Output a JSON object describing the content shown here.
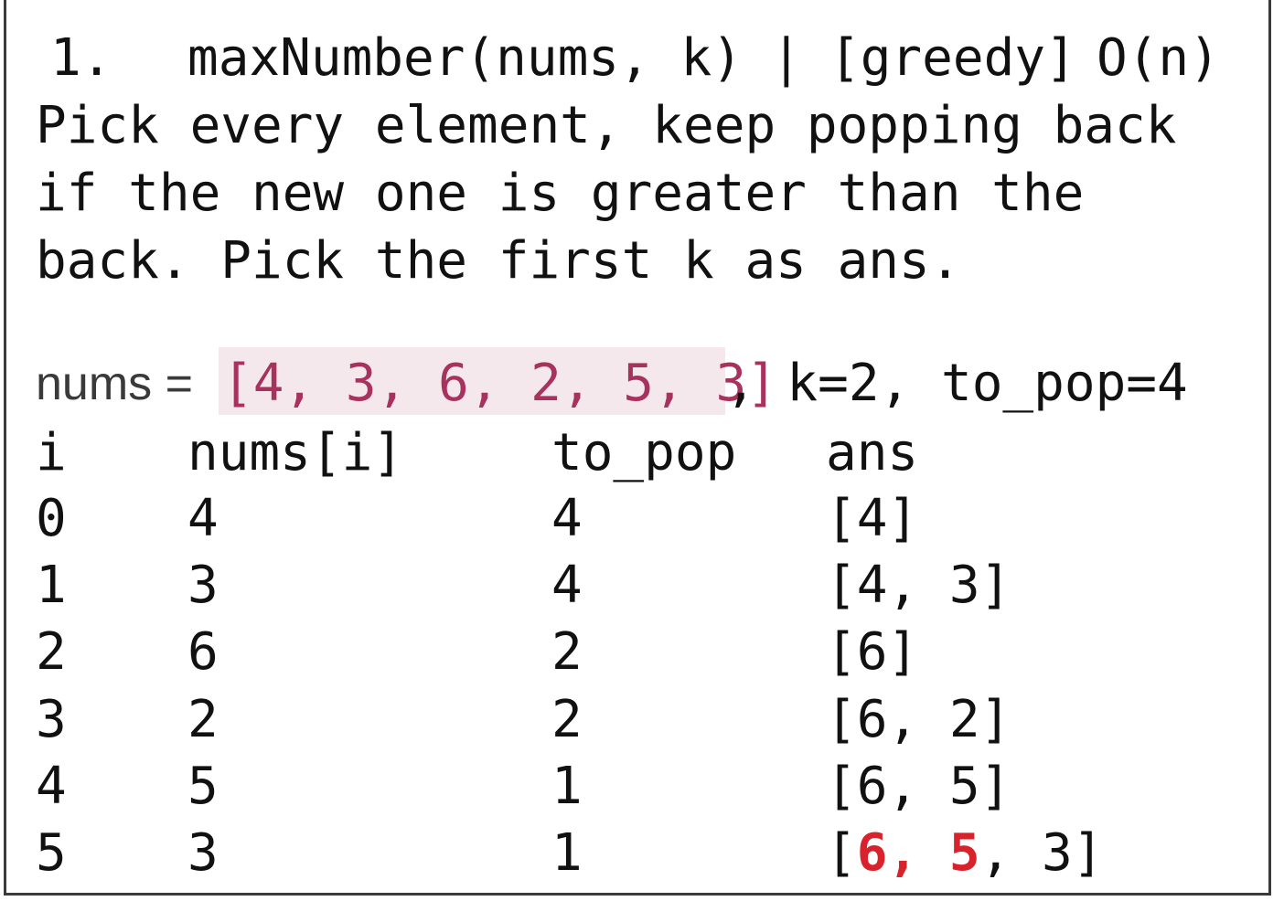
{
  "heading": {
    "number": "1.",
    "signature": "maxNumber(nums, k)",
    "separator": "|",
    "tag": "[greedy]",
    "complexity": "O(n)"
  },
  "description": [
    "Pick every element, keep popping back",
    "if the new one is greater than the",
    "back. Pick the first k as ans."
  ],
  "example": {
    "nums_label": "nums =",
    "nums_value": "[4, 3, 6, 2, 5, 3]",
    "rest": ", k=2, to_pop=4"
  },
  "table": {
    "headers": [
      "i",
      "nums[i]",
      "to_pop",
      "ans"
    ],
    "rows": [
      [
        "0",
        "4",
        "4",
        "[4]"
      ],
      [
        "1",
        "3",
        "4",
        "[4, 3]"
      ],
      [
        "2",
        "6",
        "2",
        "[6]"
      ],
      [
        "3",
        "2",
        "2",
        "[6, 2]"
      ],
      [
        "4",
        "5",
        "1",
        "[6, 5]"
      ],
      [
        "5",
        "3",
        "1",
        ""
      ]
    ],
    "final_ans": {
      "open": "[",
      "first": "6,",
      "second": "5",
      "rest": ", 3]"
    }
  },
  "colors": {
    "highlight_bg": "#f5e8ec",
    "highlight_text": "#a8325e",
    "answer_red": "#d8222c"
  }
}
